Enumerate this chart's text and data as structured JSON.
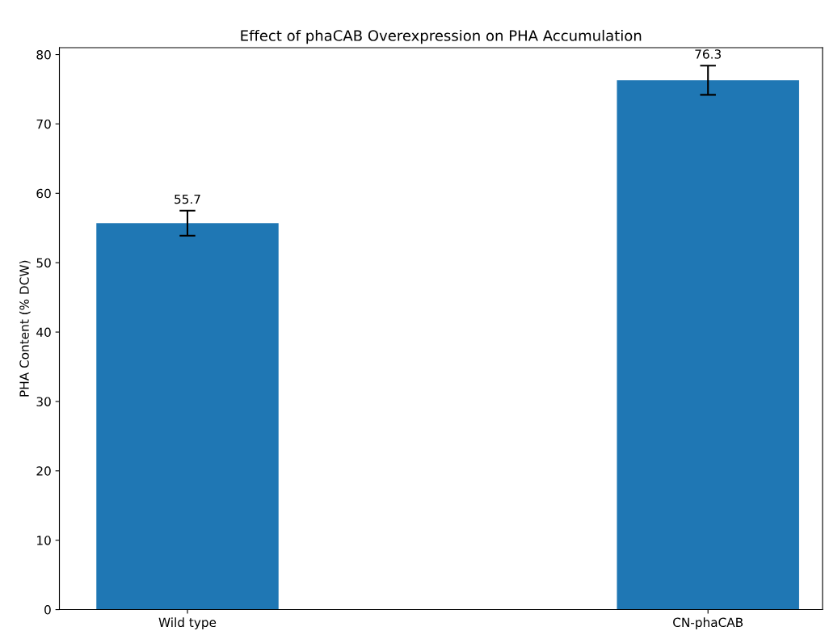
{
  "chart_data": {
    "type": "bar",
    "title": "Effect of phaCAB Overexpression on PHA Accumulation",
    "ylabel": "PHA Content (% DCW)",
    "categories": [
      "Wild type",
      "CN-phaCAB"
    ],
    "values": [
      55.7,
      76.3
    ],
    "errors": [
      1.8,
      2.1
    ],
    "color": "#1f77b4",
    "data_labels": true,
    "ylim": [
      0,
      81
    ],
    "yticks": [
      0,
      10,
      20,
      30,
      40,
      50,
      60,
      70,
      80
    ],
    "grid": false
  }
}
